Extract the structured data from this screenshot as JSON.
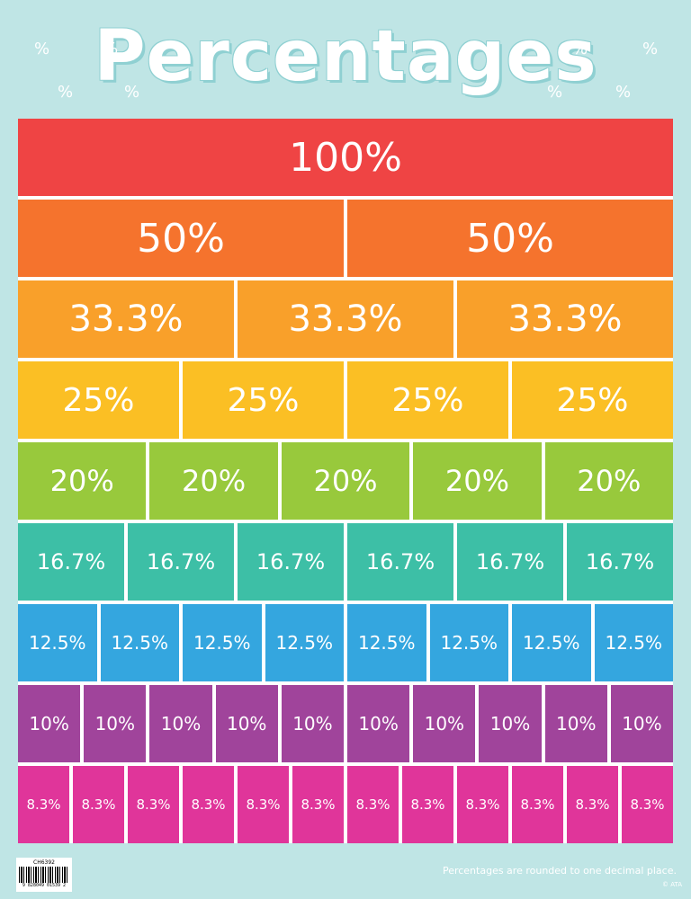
{
  "title": "Percentages",
  "decor_symbol": "%",
  "rows": [
    {
      "label": "100%",
      "count": 1,
      "color": "#ef4444",
      "font_px": 44
    },
    {
      "label": "50%",
      "count": 2,
      "color": "#f5732d",
      "font_px": 44
    },
    {
      "label": "33.3%",
      "count": 3,
      "color": "#f9a02a",
      "font_px": 40
    },
    {
      "label": "25%",
      "count": 4,
      "color": "#fbbf24",
      "font_px": 36
    },
    {
      "label": "20%",
      "count": 5,
      "color": "#98c93c",
      "font_px": 32
    },
    {
      "label": "16.7%",
      "count": 6,
      "color": "#3dbfa6",
      "font_px": 24
    },
    {
      "label": "12.5%",
      "count": 8,
      "color": "#34a6df",
      "font_px": 20
    },
    {
      "label": "10%",
      "count": 10,
      "color": "#a0449b",
      "font_px": 20
    },
    {
      "label": "8.3%",
      "count": 12,
      "color": "#e0359a",
      "font_px": 15
    }
  ],
  "footnote": "Percentages are rounded to one decimal place.",
  "copyright": "© ATA",
  "product_code": "CH6392",
  "barcode_number": "9 828049 01539 2"
}
